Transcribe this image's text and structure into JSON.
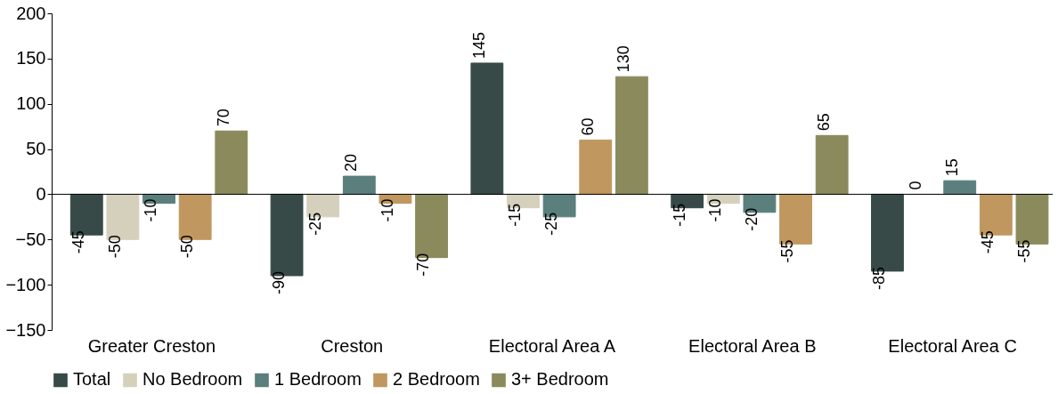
{
  "chart_data": {
    "type": "bar",
    "categories": [
      "Greater Creston",
      "Creston",
      "Electoral Area A",
      "Electoral Area B",
      "Electoral Area C"
    ],
    "series": [
      {
        "name": "Total",
        "color": "#374a48",
        "values": [
          -45,
          -90,
          145,
          -15,
          -85
        ]
      },
      {
        "name": "No Bedroom",
        "color": "#d4d0bc",
        "values": [
          -50,
          -25,
          -15,
          -10,
          0
        ]
      },
      {
        "name": "1 Bedroom",
        "color": "#5a7f7c",
        "values": [
          -10,
          20,
          -25,
          -20,
          15
        ]
      },
      {
        "name": "2 Bedroom",
        "color": "#c0975f",
        "values": [
          -50,
          -10,
          60,
          -55,
          -45
        ]
      },
      {
        "name": "3+ Bedroom",
        "color": "#8b8a5c",
        "values": [
          70,
          -70,
          130,
          65,
          -55
        ]
      }
    ],
    "ylim": [
      -150,
      200
    ],
    "yticks": [
      -150,
      -100,
      -50,
      0,
      50,
      100,
      150,
      200
    ],
    "legend": "bottom",
    "data_labels": true
  }
}
